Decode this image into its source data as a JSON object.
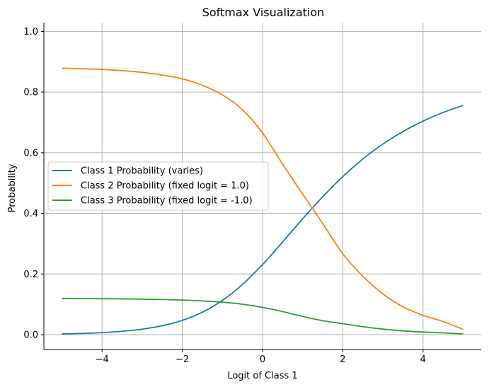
{
  "chart_data": {
    "type": "line",
    "title": "Softmax Visualization",
    "xlabel": "Logit of Class 1",
    "ylabel": "Probability",
    "xlim": [
      -5.45,
      5.45
    ],
    "ylim": [
      -0.049,
      1.029
    ],
    "xticks": [
      -4,
      -2,
      0,
      2,
      4
    ],
    "xtick_labels": [
      "−4",
      "−2",
      "0",
      "2",
      "4"
    ],
    "yticks": [
      0.0,
      0.2,
      0.4,
      0.6,
      0.8,
      1.0
    ],
    "ytick_labels": [
      "0.0",
      "0.2",
      "0.4",
      "0.6",
      "0.8",
      "1.0"
    ],
    "grid": true,
    "legend_position": "center-left",
    "x": [
      -5,
      -4.5,
      -4,
      -3.5,
      -3,
      -2.5,
      -2,
      -1.5,
      -1,
      -0.5,
      0,
      0.5,
      1,
      1.5,
      2,
      2.5,
      3,
      3.5,
      4,
      4.5,
      5
    ],
    "series": [
      {
        "name": "Class 1 Probability (varies)",
        "color": "#1f77b4",
        "values": [
          0.0025,
          0.0041,
          0.0068,
          0.0111,
          0.0181,
          0.0294,
          0.0471,
          0.074,
          0.1131,
          0.1657,
          0.2312,
          0.3054,
          0.3821,
          0.4546,
          0.5213,
          0.5793,
          0.6285,
          0.6698,
          0.7042,
          0.7328,
          0.7563
        ]
      },
      {
        "name": "Class 2 Probability (fixed logit = 1.0)",
        "color": "#ff7f0e",
        "values": [
          0.8786,
          0.877,
          0.8749,
          0.8708,
          0.8651,
          0.856,
          0.8438,
          0.8223,
          0.7907,
          0.7416,
          0.6652,
          0.5624,
          0.4634,
          0.3665,
          0.2669,
          0.1926,
          0.1345,
          0.0918,
          0.0638,
          0.0431,
          0.0175
        ]
      },
      {
        "name": "Class 3 Probability (fixed logit = -1.0)",
        "color": "#2ca02c",
        "values": [
          0.1189,
          0.1188,
          0.1185,
          0.118,
          0.1171,
          0.1158,
          0.1141,
          0.1113,
          0.107,
          0.1004,
          0.09,
          0.0761,
          0.06,
          0.046,
          0.0362,
          0.0262,
          0.0182,
          0.0124,
          0.0086,
          0.0058,
          0.0024
        ]
      }
    ]
  }
}
